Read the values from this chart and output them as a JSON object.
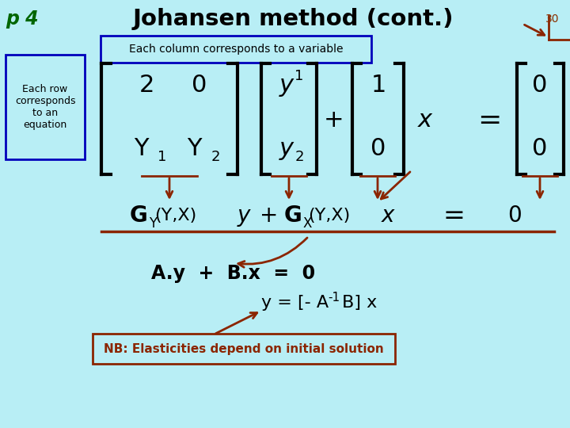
{
  "bg_color": "#b8eef5",
  "title": "Johansen method (cont.)",
  "title_color": "#000000",
  "page_label": "p 4",
  "page_label_color": "#006600",
  "page_num": "30",
  "page_num_color": "#8B3000",
  "col_box_text": "Each column corresponds to a variable",
  "col_box_color": "#0000bb",
  "row_box_text": "Each row\ncorresponds\nto an\nequation",
  "row_box_color": "#0000bb",
  "arrow_color": "#8B2500",
  "nb_text": "NB: Elasticities depend on initial solution",
  "nb_box_color": "#8B2500"
}
